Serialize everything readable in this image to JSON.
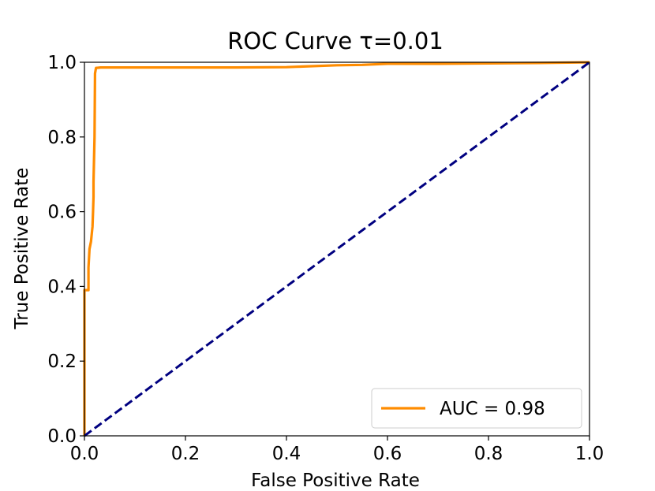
{
  "chart_data": {
    "type": "line",
    "title": "ROC Curve τ=0.01",
    "xlabel": "False Positive Rate",
    "ylabel": "True Positive Rate",
    "xlim": [
      0.0,
      1.0
    ],
    "ylim": [
      0.0,
      1.0
    ],
    "xticks": [
      "0.0",
      "0.2",
      "0.4",
      "0.6",
      "0.8",
      "1.0"
    ],
    "yticks": [
      "0.0",
      "0.2",
      "0.4",
      "0.6",
      "0.8",
      "1.0"
    ],
    "grid": false,
    "legend_position": "lower right",
    "series": [
      {
        "name": "AUC = 0.98",
        "color": "#ff8c00",
        "style": "solid",
        "x": [
          0.0,
          0.0,
          0.003,
          0.003,
          0.008,
          0.008,
          0.01,
          0.013,
          0.013,
          0.016,
          0.017,
          0.018,
          0.018,
          0.02,
          0.021,
          0.023,
          0.025,
          0.032,
          0.1,
          0.2,
          0.3,
          0.4,
          0.42,
          0.5,
          0.55,
          0.6,
          0.7,
          0.8,
          0.9,
          1.0
        ],
        "y": [
          0.0,
          0.39,
          0.39,
          0.39,
          0.39,
          0.45,
          0.5,
          0.52,
          0.52,
          0.56,
          0.6,
          0.64,
          0.68,
          0.8,
          0.97,
          0.985,
          0.985,
          0.986,
          0.986,
          0.986,
          0.986,
          0.987,
          0.988,
          0.992,
          0.993,
          0.996,
          0.996,
          0.997,
          0.998,
          1.0
        ]
      },
      {
        "name": "",
        "color": "#000080",
        "style": "dashed",
        "x": [
          0.0,
          1.0
        ],
        "y": [
          0.0,
          1.0
        ]
      }
    ]
  }
}
